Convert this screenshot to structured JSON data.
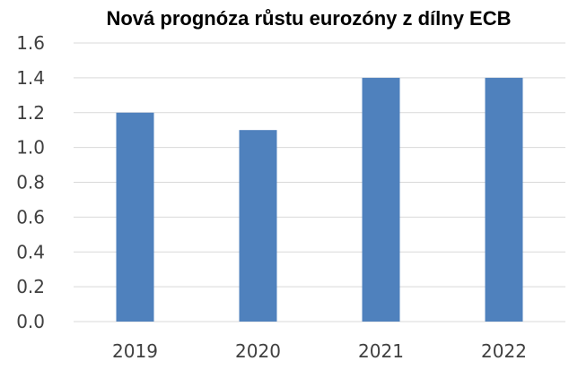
{
  "chart_data": {
    "type": "bar",
    "title": "Nová prognóza růstu eurozóny z dílny ECB",
    "categories": [
      "2019",
      "2020",
      "2021",
      "2022"
    ],
    "values": [
      1.2,
      1.1,
      1.4,
      1.4
    ],
    "ylim": [
      0,
      1.6
    ],
    "yticks": [
      "0.0",
      "0.2",
      "0.4",
      "0.6",
      "0.8",
      "1.0",
      "1.2",
      "1.4",
      "1.6"
    ],
    "grid": true,
    "bar_color": "#4f81bd"
  }
}
